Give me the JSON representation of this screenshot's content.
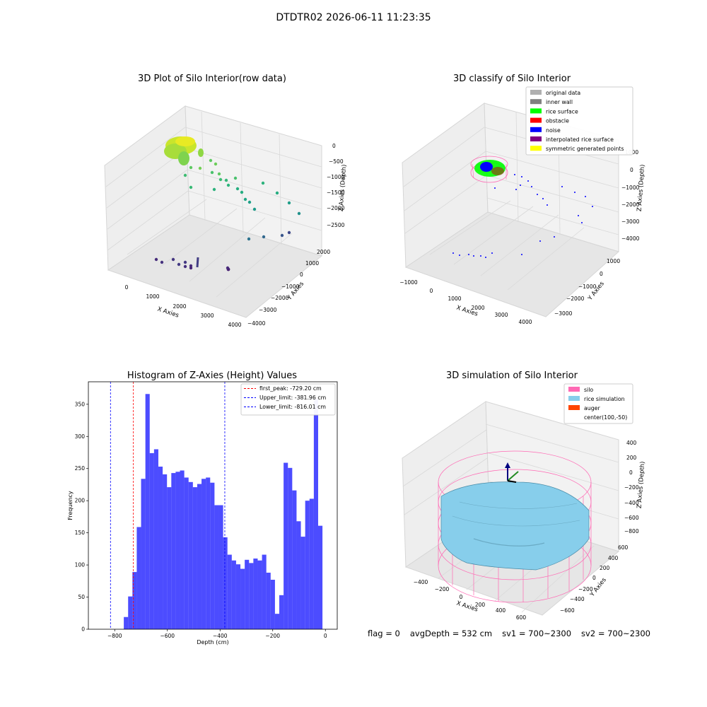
{
  "suptitle": "DTDTR02 2026-06-11 11:23:35",
  "panels": {
    "raw": {
      "title": "3D Plot of Silo Interior(row data)",
      "xlabel": "X Axies",
      "ylabel": "Y Axies",
      "zlabel": "Z Axies (Depth)",
      "xticks": [
        "0",
        "1000",
        "2000",
        "3000",
        "4000"
      ],
      "yticks": [
        "2000",
        "1000",
        "0",
        "−1000",
        "−2000",
        "−3000",
        "−4000"
      ],
      "zticks": [
        "0",
        "−500",
        "−1000",
        "−1500",
        "−2000",
        "−2500"
      ]
    },
    "classify": {
      "title": "3D classify of Silo Interior",
      "xlabel": "X Axies",
      "ylabel": "Y Axies",
      "zlabel": "Z Axies (Depth)",
      "xticks": [
        "−1000",
        "0",
        "1000",
        "2000",
        "3000",
        "4000"
      ],
      "yticks": [
        "1000",
        "0",
        "−1000",
        "−2000",
        "−3000"
      ],
      "zticks": [
        "1000",
        "0",
        "−1000",
        "−2000",
        "−3000",
        "−4000"
      ],
      "legend": [
        {
          "label": "original data",
          "color": "#b0b0b0"
        },
        {
          "label": "inner wall",
          "color": "#808080"
        },
        {
          "label": "rice surface",
          "color": "#00ff00"
        },
        {
          "label": "obstacle",
          "color": "#ff0000"
        },
        {
          "label": "noise",
          "color": "#0000ff"
        },
        {
          "label": "interpolated rice surface",
          "color": "#800080"
        },
        {
          "label": "symmetric generated points",
          "color": "#ffff00"
        }
      ]
    },
    "simulation": {
      "title": "3D simulation of Silo Interior",
      "xlabel": "X Axies",
      "ylabel": "Y Axies",
      "zlabel": "Z Axies (Depth)",
      "xticks": [
        "−400",
        "−200",
        "0",
        "200",
        "400",
        "600"
      ],
      "yticks": [
        "600",
        "400",
        "200",
        "0",
        "−200",
        "−400",
        "−600"
      ],
      "zticks": [
        "400",
        "200",
        "0",
        "−200",
        "−400",
        "−600",
        "−800"
      ],
      "legend": [
        {
          "label": "silo",
          "color": "#ff69b4"
        },
        {
          "label": "rice simulation",
          "color": "#87ceeb"
        },
        {
          "label": "auger",
          "color": "#ff4500"
        },
        {
          "label": "center(100,-50)",
          "color": "#ffffff"
        }
      ]
    }
  },
  "chart_data": {
    "type": "bar",
    "title": "Histogram of Z-Axies (Height) Values",
    "xlabel": "Depth (cm)",
    "ylabel": "Frequency",
    "xlim": [
      -900,
      45
    ],
    "ylim": [
      0,
      385
    ],
    "xticks": [
      -800,
      -600,
      -400,
      -200,
      0
    ],
    "xtick_labels": [
      "−800",
      "−600",
      "−400",
      "−200",
      "0"
    ],
    "yticks": [
      0,
      50,
      100,
      150,
      200,
      250,
      300,
      350
    ],
    "bin_start": -847.5,
    "bin_width": 16.4,
    "values": [
      0,
      0,
      0,
      0,
      0,
      19,
      51,
      89,
      159,
      234,
      366,
      274,
      280,
      253,
      241,
      221,
      243,
      245,
      247,
      236,
      229,
      221,
      226,
      234,
      236,
      228,
      193,
      193,
      143,
      116,
      107,
      101,
      94,
      108,
      103,
      110,
      107,
      116,
      88,
      77,
      24,
      53,
      259,
      251,
      216,
      168,
      144,
      200,
      203,
      358,
      161
    ],
    "bar_color": "#0000ff",
    "bar_alpha": 0.7,
    "lines": [
      {
        "label": "first_peak: -729.20 cm",
        "x": -729.2,
        "color": "#ff0000"
      },
      {
        "label": "Upper_limit: -381.96 cm",
        "x": -381.96,
        "color": "#0000ff"
      },
      {
        "label": "Lower_limit: -816.01 cm",
        "x": -816.01,
        "color": "#0000ff"
      }
    ]
  },
  "status": {
    "flag": "flag = 0",
    "avg": "avgDepth = 532 cm",
    "sv1": "sv1 = 700~2300",
    "sv2": "sv2 = 700~2300"
  }
}
